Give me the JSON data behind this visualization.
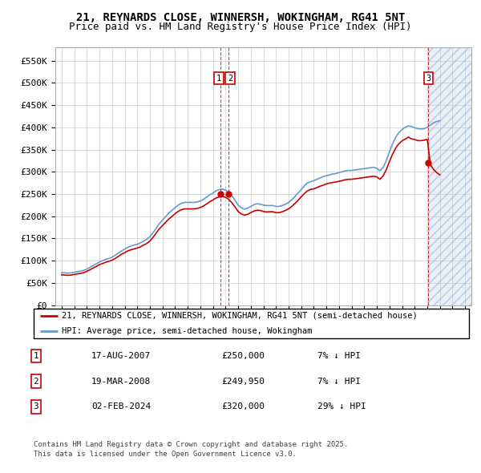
{
  "title1": "21, REYNARDS CLOSE, WINNERSH, WOKINGHAM, RG41 5NT",
  "title2": "Price paid vs. HM Land Registry's House Price Index (HPI)",
  "legend_label_red": "21, REYNARDS CLOSE, WINNERSH, WOKINGHAM, RG41 5NT (semi-detached house)",
  "legend_label_blue": "HPI: Average price, semi-detached house, Wokingham",
  "footer1": "Contains HM Land Registry data © Crown copyright and database right 2025.",
  "footer2": "This data is licensed under the Open Government Licence v3.0.",
  "transactions": [
    {
      "label": "1",
      "date": "17-AUG-2007",
      "price": 250000,
      "x": 2007.62
    },
    {
      "label": "2",
      "date": "19-MAR-2008",
      "price": 249950,
      "x": 2008.21
    },
    {
      "label": "3",
      "date": "02-FEB-2024",
      "price": 320000,
      "x": 2024.09
    }
  ],
  "table_rows": [
    [
      "1",
      "17-AUG-2007",
      "£250,000",
      "7% ↓ HPI"
    ],
    [
      "2",
      "19-MAR-2008",
      "£249,950",
      "7% ↓ HPI"
    ],
    [
      "3",
      "02-FEB-2024",
      "£320,000",
      "29% ↓ HPI"
    ]
  ],
  "hpi_data": {
    "years": [
      1995.0,
      1995.25,
      1995.5,
      1995.75,
      1996.0,
      1996.25,
      1996.5,
      1996.75,
      1997.0,
      1997.25,
      1997.5,
      1997.75,
      1998.0,
      1998.25,
      1998.5,
      1998.75,
      1999.0,
      1999.25,
      1999.5,
      1999.75,
      2000.0,
      2000.25,
      2000.5,
      2000.75,
      2001.0,
      2001.25,
      2001.5,
      2001.75,
      2002.0,
      2002.25,
      2002.5,
      2002.75,
      2003.0,
      2003.25,
      2003.5,
      2003.75,
      2004.0,
      2004.25,
      2004.5,
      2004.75,
      2005.0,
      2005.25,
      2005.5,
      2005.75,
      2006.0,
      2006.25,
      2006.5,
      2006.75,
      2007.0,
      2007.25,
      2007.5,
      2007.75,
      2008.0,
      2008.25,
      2008.5,
      2008.75,
      2009.0,
      2009.25,
      2009.5,
      2009.75,
      2010.0,
      2010.25,
      2010.5,
      2010.75,
      2011.0,
      2011.25,
      2011.5,
      2011.75,
      2012.0,
      2012.25,
      2012.5,
      2012.75,
      2013.0,
      2013.25,
      2013.5,
      2013.75,
      2014.0,
      2014.25,
      2014.5,
      2014.75,
      2015.0,
      2015.25,
      2015.5,
      2015.75,
      2016.0,
      2016.25,
      2016.5,
      2016.75,
      2017.0,
      2017.25,
      2017.5,
      2017.75,
      2018.0,
      2018.25,
      2018.5,
      2018.75,
      2019.0,
      2019.25,
      2019.5,
      2019.75,
      2020.0,
      2020.25,
      2020.5,
      2020.75,
      2021.0,
      2021.25,
      2021.5,
      2021.75,
      2022.0,
      2022.25,
      2022.5,
      2022.75,
      2023.0,
      2023.25,
      2023.5,
      2023.75,
      2024.0,
      2024.25,
      2024.5,
      2024.75,
      2025.0
    ],
    "values": [
      73000,
      72500,
      72000,
      72500,
      74000,
      75000,
      76500,
      78000,
      81000,
      85000,
      89000,
      93000,
      97000,
      100000,
      103000,
      105000,
      108000,
      112000,
      117000,
      122000,
      126000,
      130000,
      133000,
      135000,
      137000,
      140000,
      144000,
      148000,
      154000,
      163000,
      173000,
      183000,
      191000,
      199000,
      207000,
      213000,
      219000,
      225000,
      229000,
      231000,
      231000,
      231000,
      231000,
      232000,
      234000,
      238000,
      243000,
      248000,
      252000,
      257000,
      260000,
      261000,
      259000,
      254000,
      246000,
      236000,
      225000,
      219000,
      216000,
      218000,
      222000,
      226000,
      228000,
      227000,
      225000,
      224000,
      224000,
      224000,
      222000,
      222000,
      224000,
      227000,
      231000,
      237000,
      244000,
      252000,
      260000,
      268000,
      275000,
      278000,
      280000,
      283000,
      286000,
      289000,
      291000,
      293000,
      295000,
      296000,
      298000,
      300000,
      302000,
      303000,
      303000,
      304000,
      305000,
      306000,
      307000,
      308000,
      309000,
      310000,
      308000,
      302000,
      310000,
      325000,
      345000,
      363000,
      378000,
      388000,
      395000,
      400000,
      403000,
      402000,
      399000,
      397000,
      396000,
      397000,
      400000,
      405000,
      410000,
      413000,
      415000
    ]
  },
  "price_paid_data": {
    "years": [
      1995.0,
      1995.25,
      1995.5,
      1995.75,
      1996.0,
      1996.25,
      1996.5,
      1996.75,
      1997.0,
      1997.25,
      1997.5,
      1997.75,
      1998.0,
      1998.25,
      1998.5,
      1998.75,
      1999.0,
      1999.25,
      1999.5,
      1999.75,
      2000.0,
      2000.25,
      2000.5,
      2000.75,
      2001.0,
      2001.25,
      2001.5,
      2001.75,
      2002.0,
      2002.25,
      2002.5,
      2002.75,
      2003.0,
      2003.25,
      2003.5,
      2003.75,
      2004.0,
      2004.25,
      2004.5,
      2004.75,
      2005.0,
      2005.25,
      2005.5,
      2005.75,
      2006.0,
      2006.25,
      2006.5,
      2006.75,
      2007.0,
      2007.25,
      2007.5,
      2007.75,
      2008.0,
      2008.25,
      2008.5,
      2008.75,
      2009.0,
      2009.25,
      2009.5,
      2009.75,
      2010.0,
      2010.25,
      2010.5,
      2010.75,
      2011.0,
      2011.25,
      2011.5,
      2011.75,
      2012.0,
      2012.25,
      2012.5,
      2012.75,
      2013.0,
      2013.25,
      2013.5,
      2013.75,
      2014.0,
      2014.25,
      2014.5,
      2014.75,
      2015.0,
      2015.25,
      2015.5,
      2015.75,
      2016.0,
      2016.25,
      2016.5,
      2016.75,
      2017.0,
      2017.25,
      2017.5,
      2017.75,
      2018.0,
      2018.25,
      2018.5,
      2018.75,
      2019.0,
      2019.25,
      2019.5,
      2019.75,
      2020.0,
      2020.25,
      2020.5,
      2020.75,
      2021.0,
      2021.25,
      2021.5,
      2021.75,
      2022.0,
      2022.25,
      2022.5,
      2022.75,
      2023.0,
      2023.25,
      2023.5,
      2023.75,
      2024.0,
      2024.25,
      2024.5,
      2024.75,
      2025.0
    ],
    "values": [
      68000,
      67500,
      67000,
      67500,
      69000,
      70000,
      71500,
      73000,
      76000,
      79500,
      83500,
      87000,
      91000,
      93500,
      96500,
      98500,
      101000,
      105000,
      109500,
      114500,
      118000,
      122000,
      124500,
      126500,
      128500,
      131000,
      135000,
      138500,
      144000,
      152500,
      162000,
      171500,
      179000,
      186500,
      193500,
      199500,
      205500,
      211000,
      214500,
      216500,
      216500,
      216500,
      216500,
      217500,
      219500,
      223000,
      227500,
      232500,
      236500,
      241000,
      243500,
      244500,
      242500,
      238000,
      230500,
      221000,
      210500,
      205000,
      202500,
      204000,
      208000,
      211500,
      213500,
      213000,
      210500,
      209500,
      210000,
      210000,
      208000,
      208000,
      210000,
      213000,
      216500,
      222000,
      228500,
      235500,
      243500,
      251000,
      257000,
      260500,
      261500,
      264500,
      267500,
      270000,
      272500,
      274500,
      276000,
      277000,
      278500,
      280000,
      282000,
      283000,
      283000,
      284000,
      285000,
      286000,
      287000,
      288000,
      289000,
      290000,
      288500,
      283000,
      290500,
      304500,
      323000,
      339500,
      353500,
      363000,
      369500,
      373500,
      378000,
      374000,
      372500,
      370000,
      370000,
      371000,
      373000,
      316000,
      305000,
      298000,
      293000
    ]
  },
  "hatch_start_x": 2024.09,
  "hatch_end_x": 2027.5,
  "ylim": [
    0,
    580000
  ],
  "yticks": [
    0,
    50000,
    100000,
    150000,
    200000,
    250000,
    300000,
    350000,
    400000,
    450000,
    500000,
    550000
  ],
  "ytick_labels": [
    "£0",
    "£50K",
    "£100K",
    "£150K",
    "£200K",
    "£250K",
    "£300K",
    "£350K",
    "£400K",
    "£450K",
    "£500K",
    "£550K"
  ],
  "xlim": [
    1994.5,
    2027.5
  ],
  "xticks": [
    1995,
    1996,
    1997,
    1998,
    1999,
    2000,
    2001,
    2002,
    2003,
    2004,
    2005,
    2006,
    2007,
    2008,
    2009,
    2010,
    2011,
    2012,
    2013,
    2014,
    2015,
    2016,
    2017,
    2018,
    2019,
    2020,
    2021,
    2022,
    2023,
    2024,
    2025,
    2026,
    2027
  ],
  "color_red": "#cc0000",
  "color_blue": "#6699cc",
  "color_grid": "#cccccc",
  "bg_color": "#ffffff",
  "title_fontsize": 10,
  "subtitle_fontsize": 9,
  "axis_fontsize": 8,
  "legend_fontsize": 7.5,
  "table_fontsize": 8,
  "footer_fontsize": 6.5
}
